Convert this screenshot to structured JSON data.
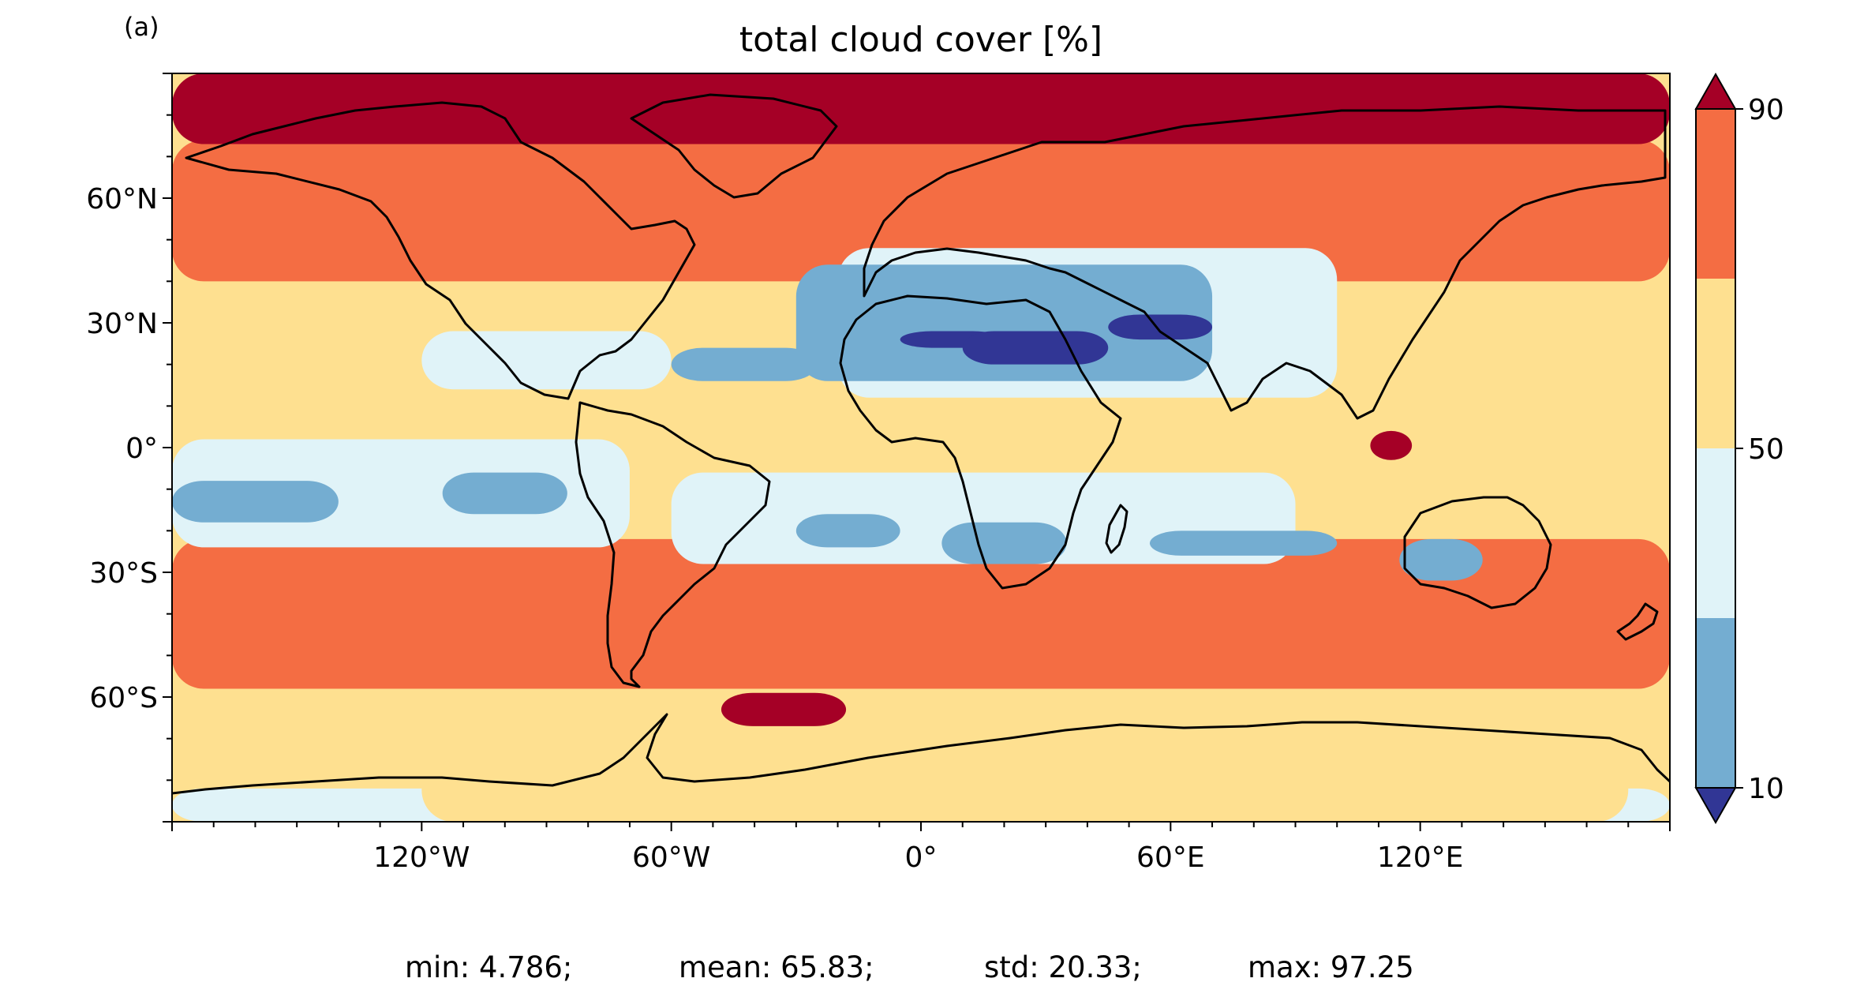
{
  "panel_label": "(a)",
  "chart_data": {
    "type": "heatmap",
    "title": "total cloud cover [%]",
    "map_projection": "PlateCarree",
    "xlim": [
      -180,
      180
    ],
    "ylim": [
      -90,
      90
    ],
    "x_ticks": [
      {
        "value": -120,
        "label": "120°W"
      },
      {
        "value": -60,
        "label": "60°W"
      },
      {
        "value": 0,
        "label": "0°"
      },
      {
        "value": 60,
        "label": "60°E"
      },
      {
        "value": 120,
        "label": "120°E"
      }
    ],
    "y_ticks": [
      {
        "value": 60,
        "label": "60°N"
      },
      {
        "value": 30,
        "label": "30°N"
      },
      {
        "value": 0,
        "label": "0°"
      },
      {
        "value": -30,
        "label": "30°S"
      },
      {
        "value": -60,
        "label": "60°S"
      }
    ],
    "colorbar": {
      "levels": [
        10,
        30,
        50,
        70,
        90
      ],
      "tick_labels": [
        {
          "value": 90,
          "label": "90"
        },
        {
          "value": 50,
          "label": "50"
        },
        {
          "value": 10,
          "label": "10"
        }
      ],
      "under_color": "#313695",
      "over_color": "#a50026",
      "band_colors": [
        "#74add1",
        "#e0f3f8",
        "#fee090",
        "#f46d43"
      ],
      "extend": "both"
    },
    "field_regions": [
      {
        "level": 70,
        "color": "#f46d43",
        "lon": [
          -180,
          180
        ],
        "lat": [
          -58,
          -22
        ]
      },
      {
        "level": 70,
        "color": "#f46d43",
        "lon": [
          -180,
          180
        ],
        "lat": [
          40,
          74
        ]
      },
      {
        "level": 90,
        "color": "#a50026",
        "lon": [
          -180,
          180
        ],
        "lat": [
          73,
          90
        ]
      },
      {
        "level": 90,
        "color": "#a50026",
        "lon": [
          -48,
          -18
        ],
        "lat": [
          -67,
          -59
        ]
      },
      {
        "level": 90,
        "color": "#a50026",
        "lon": [
          108,
          118
        ],
        "lat": [
          -3,
          4
        ]
      },
      {
        "level": 50,
        "color": "#e0f3f8",
        "lon": [
          -120,
          -60
        ],
        "lat": [
          14,
          28
        ]
      },
      {
        "level": 50,
        "color": "#e0f3f8",
        "lon": [
          -180,
          -70
        ],
        "lat": [
          -24,
          2
        ]
      },
      {
        "level": 50,
        "color": "#e0f3f8",
        "lon": [
          -60,
          90
        ],
        "lat": [
          -28,
          -6
        ]
      },
      {
        "level": 50,
        "color": "#e0f3f8",
        "lon": [
          -20,
          100
        ],
        "lat": [
          12,
          48
        ]
      },
      {
        "level": 30,
        "color": "#74add1",
        "lon": [
          -180,
          -140
        ],
        "lat": [
          -18,
          -8
        ]
      },
      {
        "level": 30,
        "color": "#74add1",
        "lon": [
          -115,
          -85
        ],
        "lat": [
          -16,
          -6
        ]
      },
      {
        "level": 30,
        "color": "#74add1",
        "lon": [
          -60,
          -25
        ],
        "lat": [
          16,
          24
        ]
      },
      {
        "level": 30,
        "color": "#74add1",
        "lon": [
          -30,
          70
        ],
        "lat": [
          16,
          44
        ]
      },
      {
        "level": 30,
        "color": "#74add1",
        "lon": [
          -30,
          -5
        ],
        "lat": [
          -24,
          -16
        ]
      },
      {
        "level": 30,
        "color": "#74add1",
        "lon": [
          5,
          35
        ],
        "lat": [
          -28,
          -18
        ]
      },
      {
        "level": 30,
        "color": "#74add1",
        "lon": [
          55,
          100
        ],
        "lat": [
          -26,
          -20
        ]
      },
      {
        "level": 30,
        "color": "#74add1",
        "lon": [
          115,
          135
        ],
        "lat": [
          -32,
          -22
        ]
      },
      {
        "level": 10,
        "color": "#313695",
        "lon": [
          -5,
          20
        ],
        "lat": [
          24,
          28
        ]
      },
      {
        "level": 10,
        "color": "#313695",
        "lon": [
          10,
          45
        ],
        "lat": [
          20,
          28
        ]
      },
      {
        "level": 10,
        "color": "#313695",
        "lon": [
          45,
          70
        ],
        "lat": [
          26,
          32
        ]
      },
      {
        "level": 50,
        "color": "#e0f3f8",
        "lon": [
          -180,
          180
        ],
        "lat": [
          -90,
          -82
        ]
      },
      {
        "level": 70,
        "color": "#fee090",
        "lon": [
          -120,
          170
        ],
        "lat": [
          -90,
          -70
        ]
      }
    ]
  },
  "stats": {
    "min_text": "min: 4.786;",
    "mean_text": "mean: 65.83;",
    "std_text": "std: 20.33;",
    "max_text": "max: 97.25"
  }
}
